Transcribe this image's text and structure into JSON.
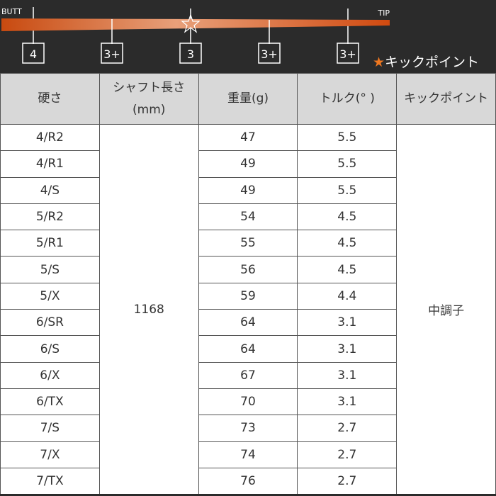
{
  "diagram": {
    "butt": "BUTT",
    "tip": "TIP",
    "markers": [
      "4",
      "3+",
      "3",
      "3+",
      "3+"
    ],
    "legend_star": "★",
    "legend_label": "キックポイント"
  },
  "table": {
    "header": [
      "硬さ",
      "シャフト長さ\n(mm)",
      "重量(g)",
      "トルク(° )",
      "キックポイント"
    ],
    "length": "1168",
    "kick_point": "中調子",
    "rows": [
      [
        "4/R2",
        "47",
        "5.5"
      ],
      [
        "4/R1",
        "49",
        "5.5"
      ],
      [
        "4/S",
        "49",
        "5.5"
      ],
      [
        "5/R2",
        "54",
        "4.5"
      ],
      [
        "5/R1",
        "55",
        "4.5"
      ],
      [
        "5/S",
        "56",
        "4.5"
      ],
      [
        "5/X",
        "59",
        "4.4"
      ],
      [
        "6/SR",
        "64",
        "3.1"
      ],
      [
        "6/S",
        "64",
        "3.1"
      ],
      [
        "6/X",
        "67",
        "3.1"
      ],
      [
        "6/TX",
        "70",
        "3.1"
      ],
      [
        "7/S",
        "73",
        "2.7"
      ],
      [
        "7/X",
        "74",
        "2.7"
      ],
      [
        "7/TX",
        "76",
        "2.7"
      ]
    ]
  }
}
